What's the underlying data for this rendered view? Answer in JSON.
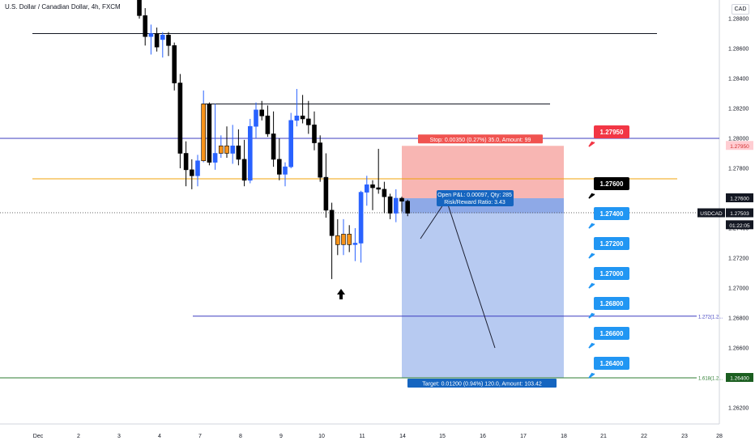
{
  "chart_data": {
    "type": "candlestick",
    "title": "U.S. Dollar / Canadian Dollar, 4h, FXCM",
    "currency": "CAD",
    "x_tick_labels": [
      "Dec",
      "2",
      "3",
      "4",
      "7",
      "8",
      "9",
      "10",
      "11",
      "14",
      "15",
      "16",
      "17",
      "18",
      "21",
      "22",
      "23",
      "28"
    ],
    "y_tick_labels": [
      "1.28800",
      "1.28600",
      "1.28400",
      "1.28200",
      "1.28000",
      "1.27800",
      "1.27600",
      "1.27400",
      "1.27200",
      "1.27000",
      "1.26800",
      "1.26600",
      "1.26400",
      "1.26200"
    ],
    "ylim": [
      1.2612,
      1.2905
    ],
    "candles": [
      [
        1.2905,
        1.2905,
        1.288,
        1.2882
      ],
      [
        1.2882,
        1.2887,
        1.2862,
        1.2868
      ],
      [
        1.2868,
        1.2876,
        1.2856,
        1.287
      ],
      [
        1.287,
        1.2874,
        1.2858,
        1.2861
      ],
      [
        1.2866,
        1.2871,
        1.2854,
        1.2869
      ],
      [
        1.2869,
        1.2871,
        1.2855,
        1.2862
      ],
      [
        1.2862,
        1.2864,
        1.2832,
        1.2837
      ],
      [
        1.2837,
        1.2843,
        1.278,
        1.279
      ],
      [
        1.279,
        1.2798,
        1.2768,
        1.2779
      ],
      [
        1.2779,
        1.2786,
        1.2766,
        1.2775
      ],
      [
        1.2775,
        1.2789,
        1.2768,
        1.2785
      ],
      [
        1.2785,
        1.2832,
        1.2784,
        1.2823
      ],
      [
        1.2823,
        1.2824,
        1.2782,
        1.2784
      ],
      [
        1.2784,
        1.2823,
        1.2779,
        1.279
      ],
      [
        1.279,
        1.2802,
        1.2787,
        1.2795
      ],
      [
        1.2795,
        1.2808,
        1.2787,
        1.279
      ],
      [
        1.279,
        1.2809,
        1.2783,
        1.2795
      ],
      [
        1.2795,
        1.2806,
        1.2782,
        1.2786
      ],
      [
        1.2786,
        1.2799,
        1.2768,
        1.2772
      ],
      [
        1.2772,
        1.2813,
        1.277,
        1.2808
      ],
      [
        1.2808,
        1.2824,
        1.28,
        1.2819
      ],
      [
        1.2819,
        1.2825,
        1.2812,
        1.2815
      ],
      [
        1.2815,
        1.2822,
        1.2801,
        1.2803
      ],
      [
        1.2803,
        1.2818,
        1.2781,
        1.2786
      ],
      [
        1.2786,
        1.28,
        1.2772,
        1.2776
      ],
      [
        1.2776,
        1.2784,
        1.2768,
        1.2781
      ],
      [
        1.2781,
        1.2817,
        1.278,
        1.2812
      ],
      [
        1.2812,
        1.2833,
        1.2808,
        1.2815
      ],
      [
        1.2815,
        1.2829,
        1.281,
        1.2813
      ],
      [
        1.2813,
        1.2825,
        1.2803,
        1.2809
      ],
      [
        1.2809,
        1.2818,
        1.2792,
        1.2797
      ],
      [
        1.2797,
        1.2802,
        1.2771,
        1.2774
      ],
      [
        1.2774,
        1.279,
        1.2747,
        1.2752
      ],
      [
        1.2752,
        1.2757,
        1.2706,
        1.2735
      ],
      [
        1.2735,
        1.2746,
        1.2722,
        1.2729
      ],
      [
        1.2729,
        1.2746,
        1.2722,
        1.2736
      ],
      [
        1.2736,
        1.2742,
        1.2724,
        1.2729
      ],
      [
        1.2729,
        1.274,
        1.2718,
        1.273
      ],
      [
        1.273,
        1.2765,
        1.2717,
        1.2764
      ],
      [
        1.2764,
        1.2775,
        1.2755,
        1.2769
      ],
      [
        1.2769,
        1.2772,
        1.2752,
        1.2767
      ],
      [
        1.2767,
        1.2793,
        1.2763,
        1.2766
      ],
      [
        1.2766,
        1.2771,
        1.275,
        1.2761
      ],
      [
        1.2761,
        1.2763,
        1.2746,
        1.275
      ],
      [
        1.275,
        1.2766,
        1.2744,
        1.276
      ],
      [
        1.276,
        1.2761,
        1.2751,
        1.2758
      ],
      [
        1.2758,
        1.2759,
        1.2748,
        1.275
      ]
    ],
    "horizontal_lines": [
      {
        "price": 1.287,
        "color": "#131722"
      },
      {
        "price": 1.2823,
        "color": "#131722"
      },
      {
        "price": 1.28,
        "color": "#3d3dbf"
      },
      {
        "price": 1.2773,
        "color": "#f0a30a"
      },
      {
        "price": 1.26812,
        "color": "#3d3dbf",
        "label": "1.272(1.2..."
      },
      {
        "price": 1.264,
        "color": "#2e7d32",
        "label": "1.618(1.2..."
      }
    ],
    "position": {
      "entry": 1.276,
      "stop": 1.2795,
      "target": 1.264,
      "stop_label": "Stop: 0.00350 (0.27%) 35.0, Amount: 99",
      "target_label": "Target: 0.01200 (0.94%) 120.0, Amount: 103.42",
      "pnl_label_1": "Open P&L: 0.00097, Qty: 285",
      "pnl_label_2": "Risk/Reward Ratio: 3.43"
    },
    "level_tags": [
      {
        "text": "1.27950",
        "style": "red"
      },
      {
        "text": "1.27600",
        "style": "black"
      },
      {
        "text": "1.27400",
        "style": "blue"
      },
      {
        "text": "1.27200",
        "style": "blue"
      },
      {
        "text": "1.27000",
        "style": "blue"
      },
      {
        "text": "1.26800",
        "style": "blue"
      },
      {
        "text": "1.26600",
        "style": "blue"
      },
      {
        "text": "1.26400",
        "style": "blue"
      }
    ],
    "axis_price_labels": [
      {
        "text": "1.27950",
        "bg": "#ffcdd2",
        "fg": "#d32f2f",
        "price": 1.2795
      },
      {
        "text": "1.27600",
        "bg": "#131722",
        "fg": "#ffffff",
        "price": 1.276
      },
      {
        "text": "USDCAD",
        "bg": "#131722",
        "fg": "#ffffff",
        "price": 1.275,
        "side": "left"
      },
      {
        "text": "1.27503",
        "bg": "#131722",
        "fg": "#ffffff",
        "price": 1.275
      },
      {
        "text": "01:22:05",
        "bg": "#131722",
        "fg": "#ffffff",
        "price": 1.2742
      },
      {
        "text": "1.26400",
        "bg": "#1b5e20",
        "fg": "#ffffff",
        "price": 1.264
      }
    ],
    "colors": {
      "up": "#2962ff",
      "down": "#000000",
      "highlight": "#f7931a",
      "risk": "#f7a9a6",
      "reward": "#b3c7f0"
    }
  }
}
